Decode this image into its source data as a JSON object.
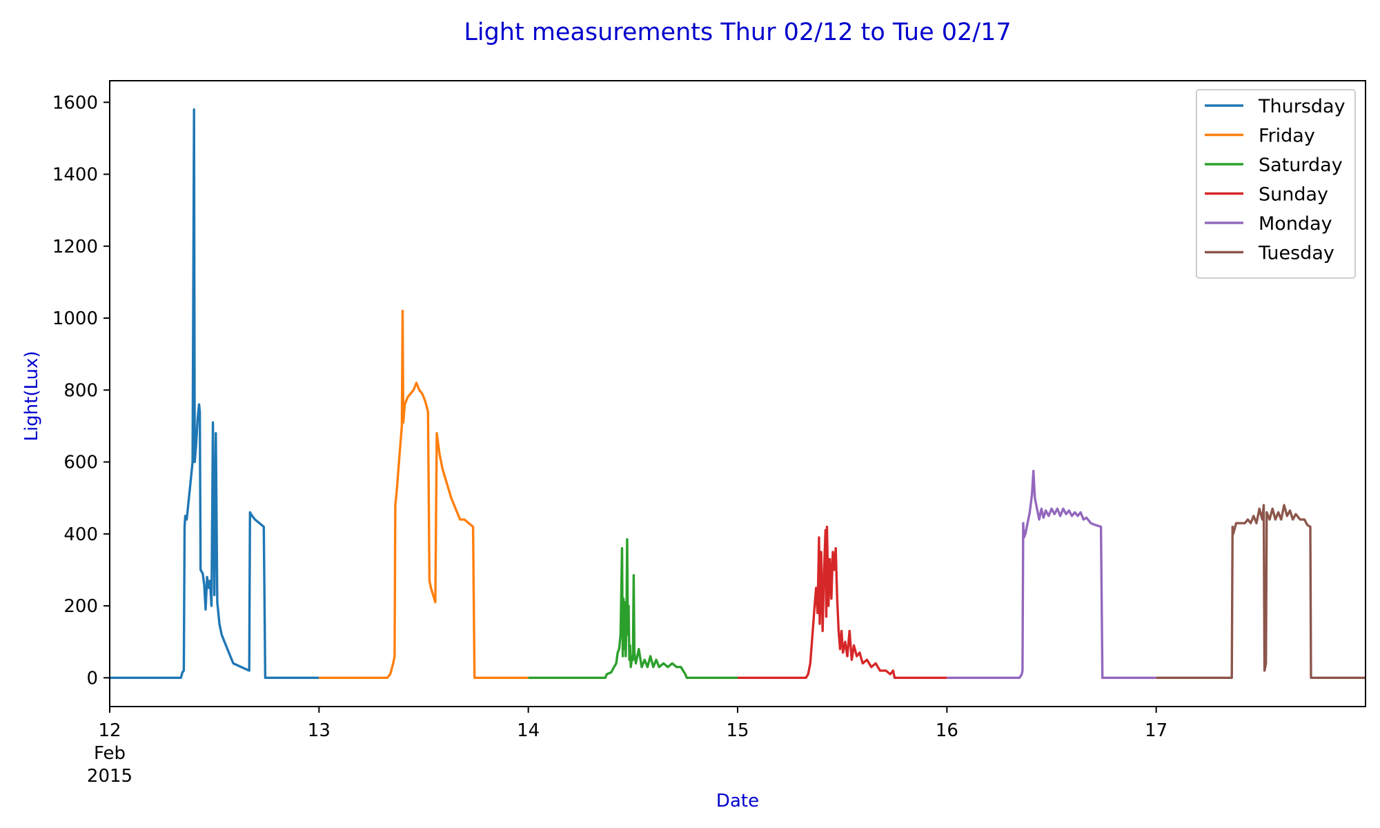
{
  "chart_data": {
    "type": "line",
    "title": "Light measurements Thur 02/12 to Tue 02/17",
    "xlabel": "Date",
    "ylabel": "Light(Lux)",
    "xlim": [
      "2015-02-12T00:00",
      "2015-02-18T00:00"
    ],
    "ylim": [
      -80,
      1660
    ],
    "yticks": [
      0,
      200,
      400,
      600,
      800,
      1000,
      1200,
      1400,
      1600
    ],
    "xticks": [
      {
        "x": "2015-02-12T00:00",
        "label": "12",
        "label2": "Feb",
        "label3": "2015"
      },
      {
        "x": "2015-02-13T00:00",
        "label": "13"
      },
      {
        "x": "2015-02-14T00:00",
        "label": "14"
      },
      {
        "x": "2015-02-15T00:00",
        "label": "15"
      },
      {
        "x": "2015-02-16T00:00",
        "label": "16"
      },
      {
        "x": "2015-02-17T00:00",
        "label": "17"
      }
    ],
    "grid": false,
    "legend_position": "top-right",
    "series": [
      {
        "name": "Thursday",
        "color": "#1f77b4",
        "points": [
          [
            "2015-02-12T00:00",
            0
          ],
          [
            "2015-02-12T08:10",
            0
          ],
          [
            "2015-02-12T08:20",
            15
          ],
          [
            "2015-02-12T08:30",
            20
          ],
          [
            "2015-02-12T08:35",
            420
          ],
          [
            "2015-02-12T08:40",
            450
          ],
          [
            "2015-02-12T08:50",
            440
          ],
          [
            "2015-02-12T09:10",
            520
          ],
          [
            "2015-02-12T09:30",
            600
          ],
          [
            "2015-02-12T09:40",
            1580
          ],
          [
            "2015-02-12T09:45",
            600
          ],
          [
            "2015-02-12T09:55",
            650
          ],
          [
            "2015-02-12T10:05",
            720
          ],
          [
            "2015-02-12T10:15",
            760
          ],
          [
            "2015-02-12T10:20",
            740
          ],
          [
            "2015-02-12T10:25",
            300
          ],
          [
            "2015-02-12T10:40",
            290
          ],
          [
            "2015-02-12T10:50",
            260
          ],
          [
            "2015-02-12T11:00",
            190
          ],
          [
            "2015-02-12T11:10",
            280
          ],
          [
            "2015-02-12T11:20",
            250
          ],
          [
            "2015-02-12T11:30",
            270
          ],
          [
            "2015-02-12T11:40",
            200
          ],
          [
            "2015-02-12T11:50",
            710
          ],
          [
            "2015-02-12T12:00",
            230
          ],
          [
            "2015-02-12T12:10",
            680
          ],
          [
            "2015-02-12T12:20",
            210
          ],
          [
            "2015-02-12T12:35",
            150
          ],
          [
            "2015-02-12T12:50",
            120
          ],
          [
            "2015-02-12T13:10",
            100
          ],
          [
            "2015-02-12T13:30",
            80
          ],
          [
            "2015-02-12T13:50",
            60
          ],
          [
            "2015-02-12T14:10",
            40
          ],
          [
            "2015-02-12T16:00",
            20
          ],
          [
            "2015-02-12T16:05",
            460
          ],
          [
            "2015-02-12T16:20",
            450
          ],
          [
            "2015-02-12T16:40",
            440
          ],
          [
            "2015-02-12T17:10",
            430
          ],
          [
            "2015-02-12T17:40",
            420
          ],
          [
            "2015-02-12T17:50",
            0
          ],
          [
            "2015-02-13T00:00",
            0
          ]
        ]
      },
      {
        "name": "Friday",
        "color": "#ff7f0e",
        "points": [
          [
            "2015-02-13T00:00",
            0
          ],
          [
            "2015-02-13T07:50",
            0
          ],
          [
            "2015-02-13T08:10",
            10
          ],
          [
            "2015-02-13T08:30",
            40
          ],
          [
            "2015-02-13T08:40",
            60
          ],
          [
            "2015-02-13T08:45",
            480
          ],
          [
            "2015-02-13T08:55",
            520
          ],
          [
            "2015-02-13T09:10",
            600
          ],
          [
            "2015-02-13T09:20",
            650
          ],
          [
            "2015-02-13T09:30",
            700
          ],
          [
            "2015-02-13T09:35",
            1020
          ],
          [
            "2015-02-13T09:40",
            710
          ],
          [
            "2015-02-13T09:50",
            760
          ],
          [
            "2015-02-13T10:10",
            780
          ],
          [
            "2015-02-13T10:30",
            790
          ],
          [
            "2015-02-13T10:50",
            800
          ],
          [
            "2015-02-13T11:10",
            820
          ],
          [
            "2015-02-13T11:30",
            800
          ],
          [
            "2015-02-13T11:50",
            790
          ],
          [
            "2015-02-13T12:10",
            770
          ],
          [
            "2015-02-13T12:30",
            740
          ],
          [
            "2015-02-13T12:40",
            270
          ],
          [
            "2015-02-13T12:50",
            250
          ],
          [
            "2015-02-13T13:05",
            230
          ],
          [
            "2015-02-13T13:20",
            210
          ],
          [
            "2015-02-13T13:30",
            680
          ],
          [
            "2015-02-13T13:50",
            620
          ],
          [
            "2015-02-13T14:10",
            580
          ],
          [
            "2015-02-13T14:40",
            540
          ],
          [
            "2015-02-13T15:10",
            500
          ],
          [
            "2015-02-13T15:40",
            470
          ],
          [
            "2015-02-13T16:10",
            440
          ],
          [
            "2015-02-13T16:40",
            440
          ],
          [
            "2015-02-13T17:10",
            430
          ],
          [
            "2015-02-13T17:40",
            420
          ],
          [
            "2015-02-13T17:50",
            0
          ],
          [
            "2015-02-14T00:00",
            0
          ]
        ]
      },
      {
        "name": "Saturday",
        "color": "#2ca02c",
        "points": [
          [
            "2015-02-14T00:00",
            0
          ],
          [
            "2015-02-14T08:50",
            0
          ],
          [
            "2015-02-14T09:00",
            10
          ],
          [
            "2015-02-14T09:30",
            15
          ],
          [
            "2015-02-14T09:50",
            30
          ],
          [
            "2015-02-14T10:05",
            40
          ],
          [
            "2015-02-14T10:15",
            70
          ],
          [
            "2015-02-14T10:25",
            80
          ],
          [
            "2015-02-14T10:35",
            120
          ],
          [
            "2015-02-14T10:45",
            360
          ],
          [
            "2015-02-14T10:50",
            60
          ],
          [
            "2015-02-14T10:55",
            220
          ],
          [
            "2015-02-14T11:00",
            80
          ],
          [
            "2015-02-14T11:05",
            210
          ],
          [
            "2015-02-14T11:10",
            60
          ],
          [
            "2015-02-14T11:15",
            150
          ],
          [
            "2015-02-14T11:20",
            385
          ],
          [
            "2015-02-14T11:25",
            120
          ],
          [
            "2015-02-14T11:30",
            200
          ],
          [
            "2015-02-14T11:35",
            50
          ],
          [
            "2015-02-14T11:40",
            90
          ],
          [
            "2015-02-14T11:45",
            30
          ],
          [
            "2015-02-14T11:55",
            60
          ],
          [
            "2015-02-14T12:00",
            50
          ],
          [
            "2015-02-14T12:05",
            285
          ],
          [
            "2015-02-14T12:10",
            70
          ],
          [
            "2015-02-14T12:20",
            40
          ],
          [
            "2015-02-14T12:40",
            80
          ],
          [
            "2015-02-14T13:00",
            30
          ],
          [
            "2015-02-14T13:20",
            50
          ],
          [
            "2015-02-14T13:40",
            30
          ],
          [
            "2015-02-14T14:00",
            60
          ],
          [
            "2015-02-14T14:20",
            30
          ],
          [
            "2015-02-14T14:40",
            50
          ],
          [
            "2015-02-14T15:00",
            30
          ],
          [
            "2015-02-14T15:30",
            40
          ],
          [
            "2015-02-14T16:00",
            30
          ],
          [
            "2015-02-14T16:30",
            40
          ],
          [
            "2015-02-14T17:00",
            30
          ],
          [
            "2015-02-14T17:30",
            30
          ],
          [
            "2015-02-14T18:00",
            10
          ],
          [
            "2015-02-14T18:10",
            0
          ],
          [
            "2015-02-15T00:00",
            0
          ]
        ]
      },
      {
        "name": "Sunday",
        "color": "#d62728",
        "points": [
          [
            "2015-02-15T00:00",
            0
          ],
          [
            "2015-02-15T07:50",
            0
          ],
          [
            "2015-02-15T08:05",
            10
          ],
          [
            "2015-02-15T08:20",
            40
          ],
          [
            "2015-02-15T08:35",
            120
          ],
          [
            "2015-02-15T08:50",
            200
          ],
          [
            "2015-02-15T09:00",
            250
          ],
          [
            "2015-02-15T09:10",
            180
          ],
          [
            "2015-02-15T09:20",
            390
          ],
          [
            "2015-02-15T09:25",
            150
          ],
          [
            "2015-02-15T09:35",
            350
          ],
          [
            "2015-02-15T09:45",
            130
          ],
          [
            "2015-02-15T09:55",
            300
          ],
          [
            "2015-02-15T10:05",
            410
          ],
          [
            "2015-02-15T10:10",
            170
          ],
          [
            "2015-02-15T10:15",
            420
          ],
          [
            "2015-02-15T10:25",
            200
          ],
          [
            "2015-02-15T10:35",
            330
          ],
          [
            "2015-02-15T10:45",
            220
          ],
          [
            "2015-02-15T10:55",
            350
          ],
          [
            "2015-02-15T11:05",
            300
          ],
          [
            "2015-02-15T11:15",
            360
          ],
          [
            "2015-02-15T11:25",
            220
          ],
          [
            "2015-02-15T11:35",
            130
          ],
          [
            "2015-02-15T11:45",
            80
          ],
          [
            "2015-02-15T11:55",
            130
          ],
          [
            "2015-02-15T12:05",
            70
          ],
          [
            "2015-02-15T12:20",
            100
          ],
          [
            "2015-02-15T12:35",
            60
          ],
          [
            "2015-02-15T12:50",
            130
          ],
          [
            "2015-02-15T13:05",
            50
          ],
          [
            "2015-02-15T13:20",
            90
          ],
          [
            "2015-02-15T13:40",
            60
          ],
          [
            "2015-02-15T14:00",
            70
          ],
          [
            "2015-02-15T14:20",
            40
          ],
          [
            "2015-02-15T14:50",
            50
          ],
          [
            "2015-02-15T15:20",
            30
          ],
          [
            "2015-02-15T15:50",
            40
          ],
          [
            "2015-02-15T16:20",
            20
          ],
          [
            "2015-02-15T17:00",
            20
          ],
          [
            "2015-02-15T17:30",
            10
          ],
          [
            "2015-02-15T17:50",
            20
          ],
          [
            "2015-02-15T18:00",
            0
          ],
          [
            "2015-02-16T00:00",
            0
          ]
        ]
      },
      {
        "name": "Monday",
        "color": "#9467bd",
        "points": [
          [
            "2015-02-16T00:00",
            0
          ],
          [
            "2015-02-16T08:20",
            0
          ],
          [
            "2015-02-16T08:35",
            10
          ],
          [
            "2015-02-16T08:40",
            20
          ],
          [
            "2015-02-16T08:45",
            430
          ],
          [
            "2015-02-16T08:50",
            390
          ],
          [
            "2015-02-16T09:00",
            400
          ],
          [
            "2015-02-16T09:15",
            430
          ],
          [
            "2015-02-16T09:30",
            460
          ],
          [
            "2015-02-16T09:45",
            510
          ],
          [
            "2015-02-16T09:55",
            575
          ],
          [
            "2015-02-16T10:05",
            500
          ],
          [
            "2015-02-16T10:20",
            470
          ],
          [
            "2015-02-16T10:35",
            440
          ],
          [
            "2015-02-16T10:50",
            470
          ],
          [
            "2015-02-16T11:05",
            445
          ],
          [
            "2015-02-16T11:20",
            465
          ],
          [
            "2015-02-16T11:40",
            450
          ],
          [
            "2015-02-16T12:00",
            470
          ],
          [
            "2015-02-16T12:20",
            455
          ],
          [
            "2015-02-16T12:40",
            470
          ],
          [
            "2015-02-16T13:00",
            450
          ],
          [
            "2015-02-16T13:20",
            470
          ],
          [
            "2015-02-16T13:40",
            455
          ],
          [
            "2015-02-16T14:00",
            465
          ],
          [
            "2015-02-16T14:20",
            450
          ],
          [
            "2015-02-16T14:40",
            460
          ],
          [
            "2015-02-16T15:00",
            450
          ],
          [
            "2015-02-16T15:20",
            460
          ],
          [
            "2015-02-16T15:40",
            440
          ],
          [
            "2015-02-16T16:00",
            445
          ],
          [
            "2015-02-16T16:30",
            430
          ],
          [
            "2015-02-16T17:00",
            425
          ],
          [
            "2015-02-16T17:40",
            420
          ],
          [
            "2015-02-16T17:50",
            0
          ],
          [
            "2015-02-17T00:00",
            0
          ]
        ]
      },
      {
        "name": "Tuesday",
        "color": "#8c564b",
        "points": [
          [
            "2015-02-17T00:00",
            0
          ],
          [
            "2015-02-17T08:40",
            0
          ],
          [
            "2015-02-17T08:45",
            420
          ],
          [
            "2015-02-17T08:50",
            400
          ],
          [
            "2015-02-17T09:10",
            430
          ],
          [
            "2015-02-17T09:40",
            430
          ],
          [
            "2015-02-17T10:10",
            430
          ],
          [
            "2015-02-17T10:30",
            440
          ],
          [
            "2015-02-17T10:50",
            430
          ],
          [
            "2015-02-17T11:10",
            450
          ],
          [
            "2015-02-17T11:30",
            430
          ],
          [
            "2015-02-17T11:50",
            470
          ],
          [
            "2015-02-17T12:10",
            440
          ],
          [
            "2015-02-17T12:20",
            480
          ],
          [
            "2015-02-17T12:25",
            20
          ],
          [
            "2015-02-17T12:35",
            40
          ],
          [
            "2015-02-17T12:40",
            460
          ],
          [
            "2015-02-17T13:00",
            440
          ],
          [
            "2015-02-17T13:20",
            470
          ],
          [
            "2015-02-17T13:40",
            440
          ],
          [
            "2015-02-17T14:00",
            460
          ],
          [
            "2015-02-17T14:20",
            440
          ],
          [
            "2015-02-17T14:40",
            480
          ],
          [
            "2015-02-17T15:00",
            450
          ],
          [
            "2015-02-17T15:20",
            465
          ],
          [
            "2015-02-17T15:40",
            440
          ],
          [
            "2015-02-17T16:00",
            455
          ],
          [
            "2015-02-17T16:30",
            440
          ],
          [
            "2015-02-17T17:00",
            440
          ],
          [
            "2015-02-17T17:20",
            425
          ],
          [
            "2015-02-17T17:40",
            420
          ],
          [
            "2015-02-17T17:45",
            0
          ],
          [
            "2015-02-18T00:00",
            0
          ]
        ]
      }
    ]
  }
}
